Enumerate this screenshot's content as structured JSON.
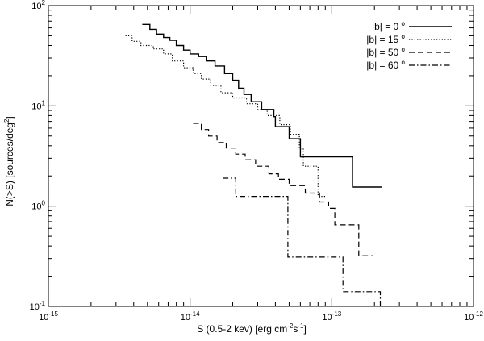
{
  "chart_data": {
    "type": "line",
    "step": true,
    "xscale": "log",
    "yscale": "log",
    "xlim": [
      1e-15,
      1e-12
    ],
    "ylim": [
      0.1,
      100
    ],
    "xlabel_main": "S (0.5-2 kev) [erg cm",
    "xlabel_sup1": "-2",
    "xlabel_mid": "s",
    "xlabel_sup2": "-1",
    "xlabel_end": "]",
    "ylabel_main": "N(>S) [sources/deg",
    "ylabel_sup": "2",
    "ylabel_end": "]",
    "xticks": [
      {
        "value": 1e-15,
        "base": "10",
        "exp": "-15"
      },
      {
        "value": 1e-14,
        "base": "10",
        "exp": "-14"
      },
      {
        "value": 1e-13,
        "base": "10",
        "exp": "-13"
      },
      {
        "value": 1e-12,
        "base": "10",
        "exp": "-12"
      }
    ],
    "yticks": [
      {
        "value": 0.1,
        "base": "10",
        "exp": "-1"
      },
      {
        "value": 1,
        "base": "10",
        "exp": "0"
      },
      {
        "value": 10,
        "base": "10",
        "exp": "1"
      },
      {
        "value": 100,
        "base": "10",
        "exp": "2"
      }
    ],
    "legend_position": "top-right",
    "grid": false,
    "series": [
      {
        "name": "|b| = 0",
        "name_sup": "o",
        "dash": "solid",
        "points": [
          [
            4.6e-15,
            65
          ],
          [
            5.2e-15,
            58
          ],
          [
            5.8e-15,
            52
          ],
          [
            6.5e-15,
            48
          ],
          [
            7.2e-15,
            45
          ],
          [
            8e-15,
            40
          ],
          [
            9e-15,
            36
          ],
          [
            1e-14,
            33
          ],
          [
            1.15e-14,
            31
          ],
          [
            1.3e-14,
            28
          ],
          [
            1.5e-14,
            25
          ],
          [
            1.75e-14,
            21
          ],
          [
            2e-14,
            18
          ],
          [
            2.2e-14,
            15
          ],
          [
            2.4e-14,
            13
          ],
          [
            2.7e-14,
            11
          ],
          [
            3.2e-14,
            9.2
          ],
          [
            3.9e-14,
            7.8
          ],
          [
            4e-14,
            6.2
          ],
          [
            5e-14,
            4.7
          ],
          [
            6e-14,
            3.1
          ],
          [
            1.4e-13,
            1.55
          ],
          [
            2.25e-13,
            1.55
          ]
        ]
      },
      {
        "name": "|b| = 15",
        "name_sup": "o",
        "dash": "dotted",
        "points": [
          [
            3.5e-15,
            50
          ],
          [
            3.9e-15,
            44
          ],
          [
            4.5e-15,
            40
          ],
          [
            5.5e-15,
            37
          ],
          [
            6.5e-15,
            33
          ],
          [
            7.5e-15,
            28
          ],
          [
            9e-15,
            24
          ],
          [
            1.05e-14,
            21
          ],
          [
            1.2e-14,
            18.5
          ],
          [
            1.4e-14,
            16
          ],
          [
            1.65e-14,
            13.5
          ],
          [
            2e-14,
            12
          ],
          [
            2.5e-14,
            10.5
          ],
          [
            3e-14,
            9.2
          ],
          [
            3.5e-14,
            8
          ],
          [
            4.3e-14,
            6.5
          ],
          [
            5.1e-14,
            5.2
          ],
          [
            5.9e-14,
            3.7
          ],
          [
            6.3e-14,
            2.5
          ],
          [
            8e-14,
            1.25
          ],
          [
            9.2e-14,
            1.25
          ]
        ]
      },
      {
        "name": "|b| = 50",
        "name_sup": "o",
        "dash": "dashed",
        "points": [
          [
            1.05e-14,
            6.7
          ],
          [
            1.2e-14,
            5.8
          ],
          [
            1.35e-14,
            5.0
          ],
          [
            1.55e-14,
            4.3
          ],
          [
            1.8e-14,
            3.8
          ],
          [
            2.1e-14,
            3.3
          ],
          [
            2.45e-14,
            2.9
          ],
          [
            2.9e-14,
            2.5
          ],
          [
            3.6e-14,
            2.1
          ],
          [
            4.2e-14,
            1.85
          ],
          [
            5e-14,
            1.6
          ],
          [
            6.5e-14,
            1.35
          ],
          [
            8.2e-14,
            1.1
          ],
          [
            9.5e-14,
            0.95
          ],
          [
            1.05e-13,
            0.65
          ],
          [
            1.55e-13,
            0.32
          ],
          [
            1.95e-13,
            0.32
          ]
        ]
      },
      {
        "name": "|b| = 60",
        "name_sup": "o",
        "dash": "dashdot",
        "points": [
          [
            1.7e-14,
            1.9
          ],
          [
            2.1e-14,
            1.25
          ],
          [
            4.9e-14,
            0.31
          ],
          [
            1.2e-13,
            0.14
          ],
          [
            2.2e-13,
            0.1
          ]
        ]
      }
    ]
  }
}
